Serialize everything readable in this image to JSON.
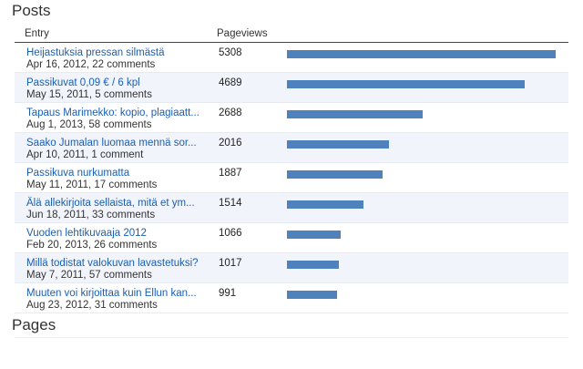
{
  "posts_title": "Posts",
  "pages_title": "Pages",
  "table": {
    "col_entry": "Entry",
    "col_pageviews": "Pageviews",
    "max_views": 5308,
    "bar_color": "#4f81bd",
    "rows": [
      {
        "title": "Heijastuksia pressan silmästä",
        "meta": "Apr 16, 2012, 22 comments",
        "views": 5308
      },
      {
        "title": "Passikuvat 0,09 € / 6 kpl",
        "meta": "May 15, 2011, 5 comments",
        "views": 4689
      },
      {
        "title": "Tapaus Marimekko: kopio, plagiaatt...",
        "meta": "Aug 1, 2013, 58 comments",
        "views": 2688
      },
      {
        "title": "Saako Jumalan luomaa mennä sor...",
        "meta": "Apr 10, 2011, 1 comment",
        "views": 2016
      },
      {
        "title": "Passikuva nurkumatta",
        "meta": "May 11, 2011, 17 comments",
        "views": 1887
      },
      {
        "title": "Älä allekirjoita sellaista, mitä et ym...",
        "meta": "Jun 18, 2011, 33 comments",
        "views": 1514
      },
      {
        "title": "Vuoden lehtikuvaaja 2012",
        "meta": "Feb 20, 2013, 26 comments",
        "views": 1066
      },
      {
        "title": "Millä todistat valokuvan lavastetuksi?",
        "meta": "May 7, 2011, 57 comments",
        "views": 1017
      },
      {
        "title": "Muuten voi kirjoittaa kuin Ellun kan...",
        "meta": "Aug 23, 2012, 31 comments",
        "views": 991
      }
    ]
  }
}
